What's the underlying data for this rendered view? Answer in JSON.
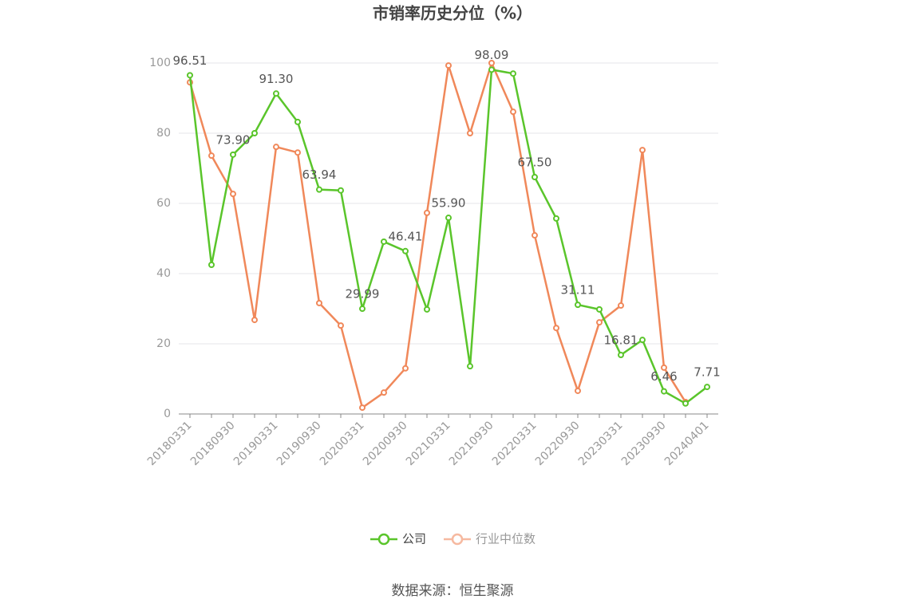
{
  "chart_data": {
    "type": "line",
    "title": "市销率历史分位（%）",
    "categories": [
      "20180331",
      null,
      "20180930",
      null,
      "20190331",
      null,
      "20190930",
      null,
      "20200331",
      null,
      "20200930",
      null,
      "20210331",
      null,
      "20210930",
      null,
      "20220331",
      null,
      "20220930",
      null,
      "20230331",
      null,
      "20230930",
      null,
      "20240401"
    ],
    "series": [
      {
        "name": "公司",
        "color": "#5ac52b",
        "values": [
          96.51,
          42.5,
          73.9,
          80.0,
          91.3,
          83.2,
          63.94,
          63.7,
          29.99,
          49.1,
          46.41,
          29.8,
          55.9,
          13.6,
          98.09,
          97.0,
          67.5,
          55.7,
          31.11,
          29.8,
          16.81,
          21.1,
          6.46,
          3.0,
          7.71
        ],
        "value_labels": [
          "96.51",
          null,
          "73.90",
          null,
          "91.30",
          null,
          "63.94",
          null,
          "29.99",
          null,
          "46.41",
          null,
          "55.90",
          null,
          "98.09",
          null,
          "67.50",
          null,
          "31.11",
          null,
          "16.81",
          null,
          "6.46",
          null,
          "7.71"
        ]
      },
      {
        "name": "行业中位数",
        "color": "#f0885a",
        "values": [
          94.5,
          73.6,
          62.7,
          26.8,
          76.1,
          74.5,
          31.6,
          25.2,
          1.8,
          6.1,
          13.0,
          57.3,
          99.3,
          80.0,
          100,
          86.1,
          50.9,
          24.5,
          6.6,
          26.1,
          30.9,
          75.2,
          13.2,
          3.4,
          null
        ]
      }
    ],
    "ylim": [
      0,
      100
    ],
    "yticks": [
      0,
      20,
      40,
      60,
      80,
      100
    ],
    "grid": true,
    "source": "数据来源：恒生聚源"
  }
}
